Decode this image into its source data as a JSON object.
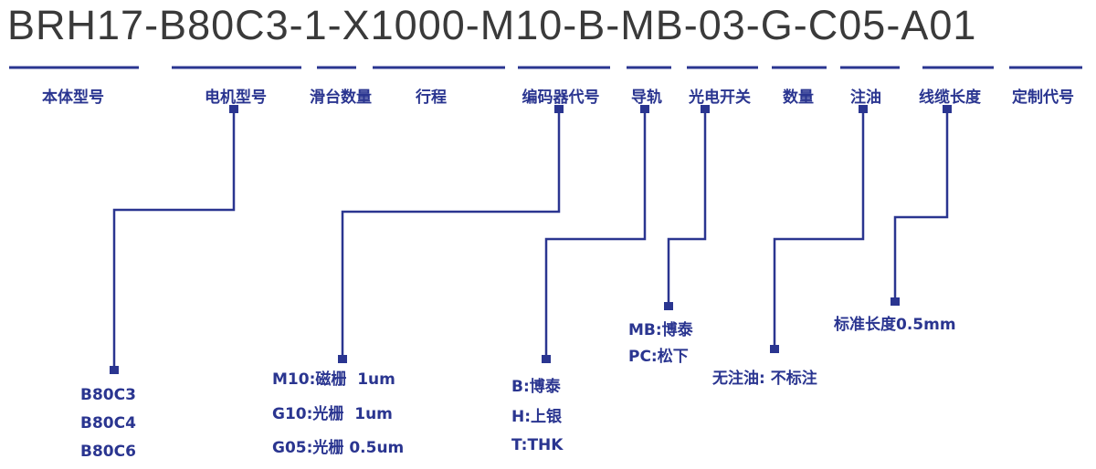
{
  "model_code": "BRH17-B80C3-1-X1000-M10-B-MB-03-G-C05-A01",
  "colors": {
    "code_text": "#3a3a3a",
    "accent": "#2a3590"
  },
  "segments": [
    {
      "label": "本体型号"
    },
    {
      "label": "电机型号",
      "options": [
        "B80C3",
        "B80C4",
        "B80C6"
      ]
    },
    {
      "label": "滑台数量"
    },
    {
      "label": "行程"
    },
    {
      "label": "编码器代号",
      "options": [
        "M10:磁栅  1um",
        "G10:光栅  1um",
        "G05:光栅 0.5um"
      ]
    },
    {
      "label": "导轨",
      "options": [
        "B:博泰",
        "H:上银",
        "T:THK"
      ]
    },
    {
      "label": "光电开关",
      "options": [
        "MB:博泰",
        "PC:松下"
      ]
    },
    {
      "label": "数量"
    },
    {
      "label": "注油",
      "options": [
        "无注油: 不标注"
      ]
    },
    {
      "label": "线缆长度",
      "options": [
        "标准长度0.5mm"
      ]
    },
    {
      "label": "定制代号"
    }
  ]
}
